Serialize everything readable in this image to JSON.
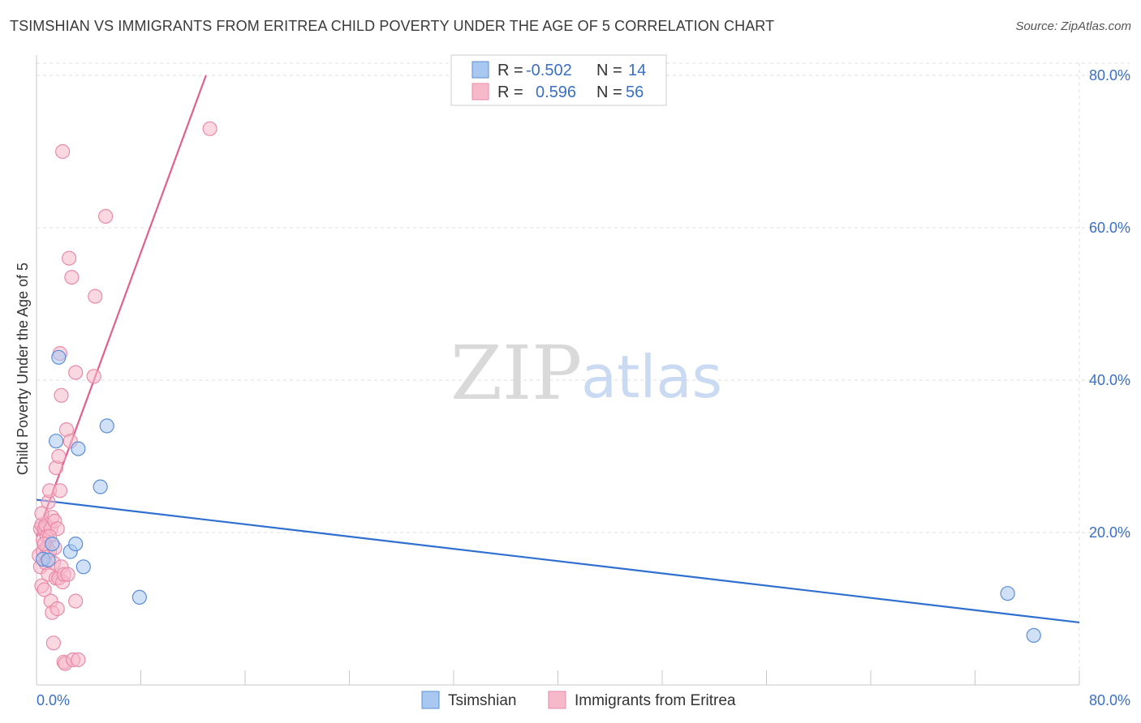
{
  "header": {
    "title": "TSIMSHIAN VS IMMIGRANTS FROM ERITREA CHILD POVERTY UNDER THE AGE OF 5 CORRELATION CHART",
    "source": "Source: ZipAtlas.com"
  },
  "watermark": {
    "zip": "ZIP",
    "atlas": "atlas"
  },
  "colors": {
    "blue_fill": "#a9c8f0",
    "blue_stroke": "#5b8ed6",
    "blue_line": "#2f6fd0",
    "pink_fill": "#f6b8cb",
    "pink_stroke": "#e98aa8",
    "pink_line": "#e0608e",
    "grid": "#dcdcdc",
    "accent_text": "#3a6fc4"
  },
  "legend_box": {
    "rows": [
      {
        "r_label": "R =",
        "r_value": "-0.502",
        "n_label": "N =",
        "n_value": "14",
        "series": "blue"
      },
      {
        "r_label": "R =",
        "r_value": "0.596",
        "n_label": "N =",
        "n_value": "56",
        "series": "pink"
      }
    ]
  },
  "chart_data": {
    "type": "scatter",
    "title": "TSIMSHIAN VS IMMIGRANTS FROM ERITREA CHILD POVERTY UNDER THE AGE OF 5 CORRELATION CHART",
    "xlabel": "",
    "ylabel": "Child Poverty Under the Age of 5",
    "xlim": [
      0,
      80
    ],
    "ylim": [
      0,
      80
    ],
    "x_tick_labels": [
      "0.0%",
      "80.0%"
    ],
    "y_ticks": [
      20,
      40,
      60,
      80
    ],
    "y_tick_labels": [
      "20.0%",
      "40.0%",
      "60.0%",
      "80.0%"
    ],
    "grid": true,
    "legend_position": "bottom",
    "series": [
      {
        "name": "Tsimshian",
        "color": "blue",
        "trend": [
          [
            0,
            24.3
          ],
          [
            80,
            8.2
          ]
        ],
        "points": [
          [
            0.5,
            16.5
          ],
          [
            1.2,
            18.5
          ],
          [
            1.5,
            32.0
          ],
          [
            1.7,
            43.0
          ],
          [
            2.6,
            17.5
          ],
          [
            3.0,
            18.5
          ],
          [
            3.2,
            31.0
          ],
          [
            3.6,
            15.5
          ],
          [
            4.9,
            26.0
          ],
          [
            5.4,
            34.0
          ],
          [
            7.9,
            11.5
          ],
          [
            0.9,
            16.4
          ],
          [
            74.5,
            12.0
          ],
          [
            76.5,
            6.5
          ]
        ]
      },
      {
        "name": "Immigrants from Eritrea",
        "color": "pink",
        "trend": [
          [
            0.0,
            19.5
          ],
          [
            13.0,
            80.0
          ]
        ],
        "points": [
          [
            0.2,
            17.0
          ],
          [
            0.3,
            20.5
          ],
          [
            0.3,
            15.5
          ],
          [
            0.4,
            13.0
          ],
          [
            0.4,
            21.0
          ],
          [
            0.5,
            19.0
          ],
          [
            0.5,
            17.5
          ],
          [
            0.6,
            20.5
          ],
          [
            0.6,
            12.5
          ],
          [
            0.7,
            16.0
          ],
          [
            0.7,
            21.0
          ],
          [
            0.8,
            19.5
          ],
          [
            0.8,
            18.0
          ],
          [
            0.9,
            14.5
          ],
          [
            0.9,
            24.0
          ],
          [
            1.0,
            17.5
          ],
          [
            1.0,
            25.5
          ],
          [
            1.1,
            20.5
          ],
          [
            1.1,
            11.0
          ],
          [
            1.2,
            22.0
          ],
          [
            1.2,
            9.5
          ],
          [
            1.3,
            16.0
          ],
          [
            1.3,
            5.5
          ],
          [
            1.4,
            18.0
          ],
          [
            1.4,
            21.5
          ],
          [
            1.5,
            28.5
          ],
          [
            1.5,
            14.0
          ],
          [
            1.6,
            10.0
          ],
          [
            1.6,
            20.5
          ],
          [
            1.7,
            14.0
          ],
          [
            1.7,
            30.0
          ],
          [
            1.8,
            25.5
          ],
          [
            1.8,
            43.5
          ],
          [
            1.9,
            38.0
          ],
          [
            1.9,
            15.5
          ],
          [
            2.0,
            13.5
          ],
          [
            2.0,
            70.0
          ],
          [
            2.1,
            3.0
          ],
          [
            2.1,
            14.5
          ],
          [
            2.2,
            2.8
          ],
          [
            2.3,
            33.5
          ],
          [
            2.4,
            14.5
          ],
          [
            2.5,
            56.0
          ],
          [
            2.6,
            32.0
          ],
          [
            2.7,
            53.5
          ],
          [
            2.8,
            3.3
          ],
          [
            3.0,
            11.0
          ],
          [
            3.0,
            41.0
          ],
          [
            3.2,
            3.3
          ],
          [
            4.4,
            40.5
          ],
          [
            4.5,
            51.0
          ],
          [
            5.3,
            61.5
          ],
          [
            13.3,
            73.0
          ],
          [
            0.4,
            22.5
          ],
          [
            1.0,
            19.5
          ],
          [
            0.6,
            18.5
          ]
        ]
      }
    ]
  }
}
